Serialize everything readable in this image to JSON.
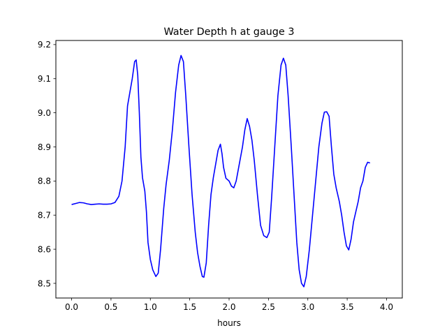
{
  "chart_data": {
    "type": "line",
    "title": "Water Depth h at gauge 3",
    "xlabel": "hours",
    "ylabel": "",
    "xlim": [
      -0.2,
      4.2
    ],
    "ylim": [
      8.457,
      9.212
    ],
    "x_ticks": [
      0.0,
      0.5,
      1.0,
      1.5,
      2.0,
      2.5,
      3.0,
      3.5,
      4.0
    ],
    "x_tick_labels": [
      "0.0",
      "0.5",
      "1.0",
      "1.5",
      "2.0",
      "2.5",
      "3.0",
      "3.5",
      "4.0"
    ],
    "y_ticks": [
      8.5,
      8.6,
      8.7,
      8.8,
      8.9,
      9.0,
      9.1,
      9.2
    ],
    "y_tick_labels": [
      "8.5",
      "8.6",
      "8.7",
      "8.8",
      "8.9",
      "9.0",
      "9.1",
      "9.2"
    ],
    "grid": false,
    "series": [
      {
        "color": "#0000ff",
        "points": [
          [
            0.0,
            8.731
          ],
          [
            0.05,
            8.734
          ],
          [
            0.1,
            8.737
          ],
          [
            0.15,
            8.736
          ],
          [
            0.2,
            8.733
          ],
          [
            0.25,
            8.731
          ],
          [
            0.3,
            8.732
          ],
          [
            0.35,
            8.733
          ],
          [
            0.4,
            8.732
          ],
          [
            0.45,
            8.732
          ],
          [
            0.5,
            8.733
          ],
          [
            0.55,
            8.737
          ],
          [
            0.6,
            8.755
          ],
          [
            0.64,
            8.8
          ],
          [
            0.68,
            8.9
          ],
          [
            0.71,
            9.02
          ],
          [
            0.74,
            9.06
          ],
          [
            0.77,
            9.1
          ],
          [
            0.8,
            9.15
          ],
          [
            0.82,
            9.155
          ],
          [
            0.84,
            9.11
          ],
          [
            0.86,
            9.0
          ],
          [
            0.88,
            8.87
          ],
          [
            0.9,
            8.81
          ],
          [
            0.93,
            8.77
          ],
          [
            0.95,
            8.71
          ],
          [
            0.97,
            8.62
          ],
          [
            1.0,
            8.57
          ],
          [
            1.03,
            8.54
          ],
          [
            1.07,
            8.52
          ],
          [
            1.1,
            8.53
          ],
          [
            1.13,
            8.6
          ],
          [
            1.17,
            8.72
          ],
          [
            1.2,
            8.79
          ],
          [
            1.24,
            8.86
          ],
          [
            1.28,
            8.95
          ],
          [
            1.32,
            9.06
          ],
          [
            1.36,
            9.14
          ],
          [
            1.39,
            9.168
          ],
          [
            1.42,
            9.15
          ],
          [
            1.45,
            9.05
          ],
          [
            1.49,
            8.9
          ],
          [
            1.53,
            8.76
          ],
          [
            1.57,
            8.65
          ],
          [
            1.6,
            8.59
          ],
          [
            1.63,
            8.55
          ],
          [
            1.66,
            8.52
          ],
          [
            1.68,
            8.518
          ],
          [
            1.71,
            8.56
          ],
          [
            1.74,
            8.67
          ],
          [
            1.77,
            8.76
          ],
          [
            1.8,
            8.81
          ],
          [
            1.83,
            8.85
          ],
          [
            1.86,
            8.89
          ],
          [
            1.89,
            8.908
          ],
          [
            1.91,
            8.88
          ],
          [
            1.93,
            8.84
          ],
          [
            1.96,
            8.808
          ],
          [
            2.0,
            8.8
          ],
          [
            2.03,
            8.785
          ],
          [
            2.06,
            8.78
          ],
          [
            2.09,
            8.8
          ],
          [
            2.13,
            8.85
          ],
          [
            2.17,
            8.9
          ],
          [
            2.2,
            8.95
          ],
          [
            2.23,
            8.983
          ],
          [
            2.26,
            8.96
          ],
          [
            2.29,
            8.92
          ],
          [
            2.32,
            8.86
          ],
          [
            2.36,
            8.76
          ],
          [
            2.4,
            8.67
          ],
          [
            2.44,
            8.64
          ],
          [
            2.48,
            8.634
          ],
          [
            2.51,
            8.65
          ],
          [
            2.54,
            8.75
          ],
          [
            2.58,
            8.9
          ],
          [
            2.62,
            9.05
          ],
          [
            2.66,
            9.14
          ],
          [
            2.69,
            9.16
          ],
          [
            2.72,
            9.14
          ],
          [
            2.75,
            9.05
          ],
          [
            2.79,
            8.9
          ],
          [
            2.83,
            8.74
          ],
          [
            2.86,
            8.62
          ],
          [
            2.89,
            8.54
          ],
          [
            2.92,
            8.5
          ],
          [
            2.95,
            8.49
          ],
          [
            2.98,
            8.52
          ],
          [
            3.02,
            8.6
          ],
          [
            3.06,
            8.7
          ],
          [
            3.1,
            8.8
          ],
          [
            3.14,
            8.9
          ],
          [
            3.18,
            8.97
          ],
          [
            3.21,
            9.002
          ],
          [
            3.24,
            9.003
          ],
          [
            3.27,
            8.99
          ],
          [
            3.3,
            8.9
          ],
          [
            3.33,
            8.82
          ],
          [
            3.36,
            8.78
          ],
          [
            3.4,
            8.74
          ],
          [
            3.43,
            8.7
          ],
          [
            3.46,
            8.65
          ],
          [
            3.49,
            8.61
          ],
          [
            3.52,
            8.598
          ],
          [
            3.55,
            8.63
          ],
          [
            3.58,
            8.68
          ],
          [
            3.61,
            8.71
          ],
          [
            3.64,
            8.74
          ],
          [
            3.67,
            8.78
          ],
          [
            3.7,
            8.8
          ],
          [
            3.73,
            8.84
          ],
          [
            3.76,
            8.855
          ],
          [
            3.79,
            8.853
          ]
        ]
      }
    ]
  }
}
